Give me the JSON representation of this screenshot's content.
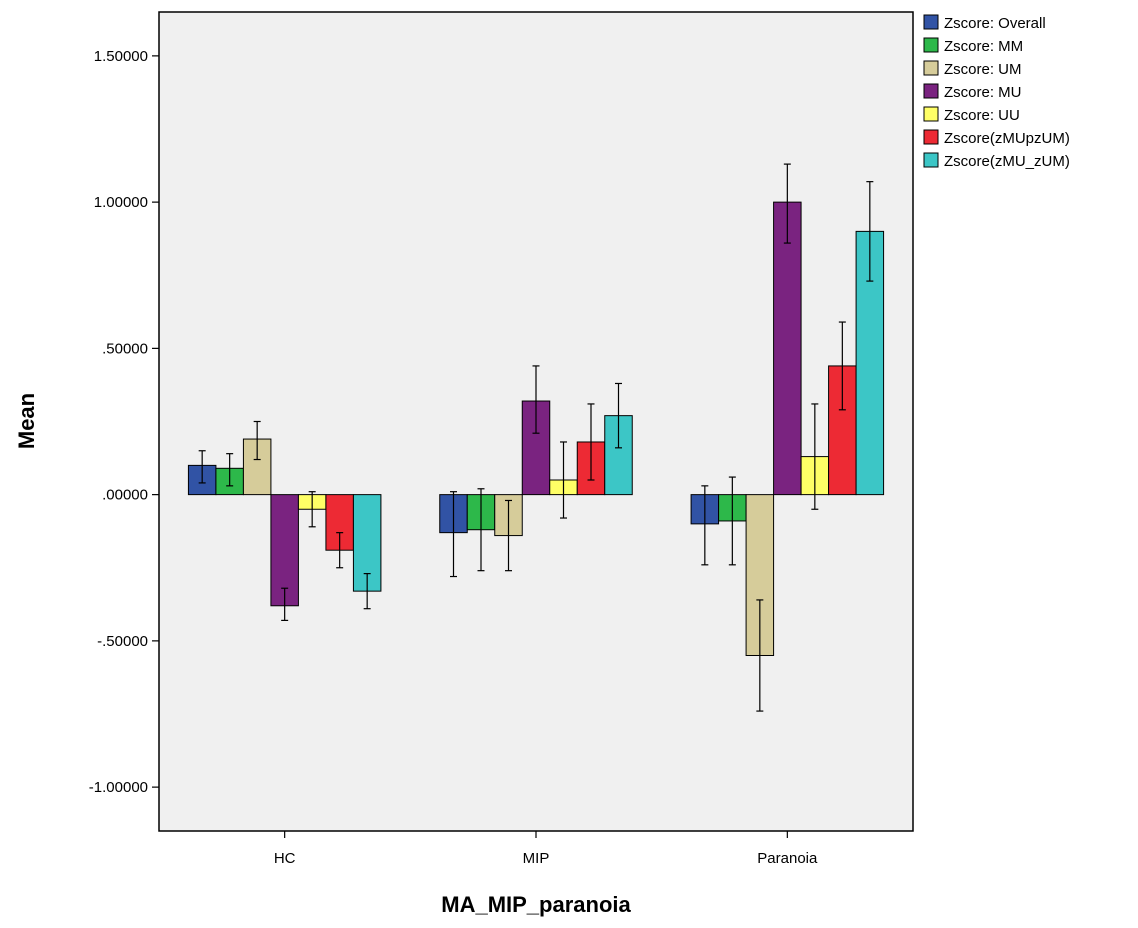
{
  "chart_data": {
    "type": "bar",
    "title": "",
    "xlabel": "MA_MIP_paranoia",
    "ylabel": "Mean",
    "ylim": [
      -1.15,
      1.65
    ],
    "yticks": [
      -1.0,
      -0.5,
      0.0,
      0.5,
      1.0,
      1.5
    ],
    "ytick_labels": [
      "-1.00000",
      "-.50000",
      ".00000",
      ".50000",
      "1.00000",
      "1.50000"
    ],
    "categories": [
      "HC",
      "MIP",
      "Paranoia"
    ],
    "legend_position": "right",
    "grid": false,
    "series": [
      {
        "name": "Zscore:  Overall",
        "color": "#3153a5",
        "values": [
          0.1,
          -0.13,
          -0.1
        ],
        "err_low": [
          0.04,
          -0.28,
          -0.24
        ],
        "err_high": [
          0.15,
          0.01,
          0.03
        ]
      },
      {
        "name": "Zscore:  MM",
        "color": "#2db84a",
        "values": [
          0.09,
          -0.12,
          -0.09
        ],
        "err_low": [
          0.03,
          -0.26,
          -0.24
        ],
        "err_high": [
          0.14,
          0.02,
          0.06
        ]
      },
      {
        "name": "Zscore:  UM",
        "color": "#d6cc9a",
        "values": [
          0.19,
          -0.14,
          -0.55
        ],
        "err_low": [
          0.12,
          -0.26,
          -0.74
        ],
        "err_high": [
          0.25,
          -0.02,
          -0.36
        ]
      },
      {
        "name": "Zscore:  MU",
        "color": "#7a2380",
        "values": [
          -0.38,
          0.32,
          1.0
        ],
        "err_low": [
          -0.43,
          0.21,
          0.86
        ],
        "err_high": [
          -0.32,
          0.44,
          1.13
        ]
      },
      {
        "name": "Zscore:  UU",
        "color": "#ffff66",
        "values": [
          -0.05,
          0.05,
          0.13
        ],
        "err_low": [
          -0.11,
          -0.08,
          -0.05
        ],
        "err_high": [
          0.01,
          0.18,
          0.31
        ]
      },
      {
        "name": "Zscore(zMUpzUM)",
        "color": "#ed2a34",
        "values": [
          -0.19,
          0.18,
          0.44
        ],
        "err_low": [
          -0.25,
          0.05,
          0.29
        ],
        "err_high": [
          -0.13,
          0.31,
          0.59
        ]
      },
      {
        "name": "Zscore(zMU_zUM)",
        "color": "#3cc6c6",
        "values": [
          -0.33,
          0.27,
          0.9
        ],
        "err_low": [
          -0.39,
          0.16,
          0.73
        ],
        "err_high": [
          -0.27,
          0.38,
          1.07
        ]
      }
    ]
  }
}
